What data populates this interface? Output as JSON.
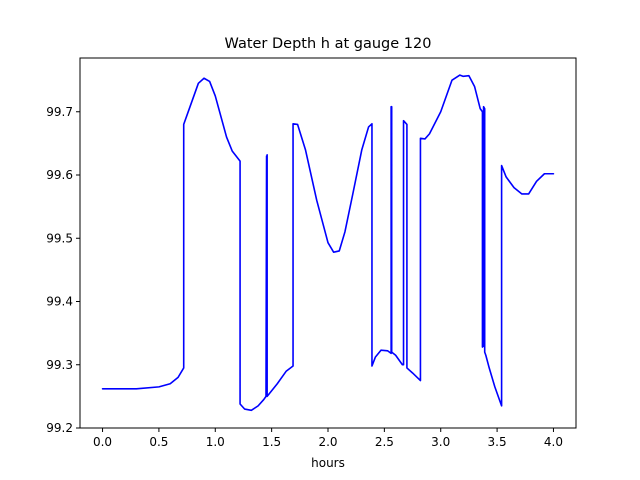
{
  "chart_data": {
    "type": "line",
    "title": "Water Depth h at gauge 120",
    "xlabel": "hours",
    "ylabel": "",
    "xlim": [
      -0.2,
      4.2
    ],
    "ylim": [
      99.2,
      99.785
    ],
    "xticks": [
      "0.0",
      "0.5",
      "1.0",
      "1.5",
      "2.0",
      "2.5",
      "3.0",
      "3.5",
      "4.0"
    ],
    "yticks": [
      "99.2",
      "99.3",
      "99.4",
      "99.5",
      "99.6",
      "99.7"
    ],
    "grid": false,
    "legend": "none",
    "series": [
      {
        "color": "#0000ff",
        "x": [
          0.0,
          0.3,
          0.5,
          0.6,
          0.67,
          0.72,
          0.72,
          0.78,
          0.85,
          0.9,
          0.95,
          1.0,
          1.1,
          1.15,
          1.22,
          1.22,
          1.26,
          1.32,
          1.38,
          1.43,
          1.45,
          1.455,
          1.455,
          1.46,
          1.46,
          1.55,
          1.63,
          1.69,
          1.69,
          1.73,
          1.8,
          1.9,
          2.0,
          2.05,
          2.1,
          2.15,
          2.22,
          2.3,
          2.36,
          2.39,
          2.39,
          2.42,
          2.47,
          2.53,
          2.56,
          2.56,
          2.565,
          2.565,
          2.6,
          2.66,
          2.67,
          2.67,
          2.7,
          2.7,
          2.75,
          2.82,
          2.82,
          2.86,
          2.9,
          3.0,
          3.1,
          3.17,
          3.2,
          3.25,
          3.3,
          3.35,
          3.37,
          3.37,
          3.38,
          3.38,
          3.39,
          3.39,
          3.4,
          3.43,
          3.48,
          3.54,
          3.54,
          3.58,
          3.65,
          3.72,
          3.78,
          3.85,
          3.92,
          4.0
        ],
        "y": [
          99.262,
          99.262,
          99.265,
          99.27,
          99.28,
          99.295,
          99.68,
          99.71,
          99.745,
          99.753,
          99.748,
          99.725,
          99.66,
          99.638,
          99.622,
          99.238,
          99.23,
          99.228,
          99.235,
          99.245,
          99.25,
          99.63,
          99.25,
          99.632,
          99.25,
          99.27,
          99.29,
          99.298,
          99.681,
          99.68,
          99.64,
          99.56,
          99.493,
          99.478,
          99.48,
          99.51,
          99.57,
          99.64,
          99.676,
          99.681,
          99.298,
          99.312,
          99.323,
          99.322,
          99.318,
          99.708,
          99.708,
          99.32,
          99.315,
          99.3,
          99.3,
          99.686,
          99.68,
          99.295,
          99.287,
          99.275,
          99.658,
          99.657,
          99.665,
          99.7,
          99.75,
          99.758,
          99.756,
          99.757,
          99.74,
          99.705,
          99.7,
          99.328,
          99.33,
          99.708,
          99.705,
          99.32,
          99.315,
          99.295,
          99.265,
          99.235,
          99.615,
          99.597,
          99.58,
          99.57,
          99.57,
          99.59,
          99.602,
          99.602
        ]
      }
    ]
  }
}
